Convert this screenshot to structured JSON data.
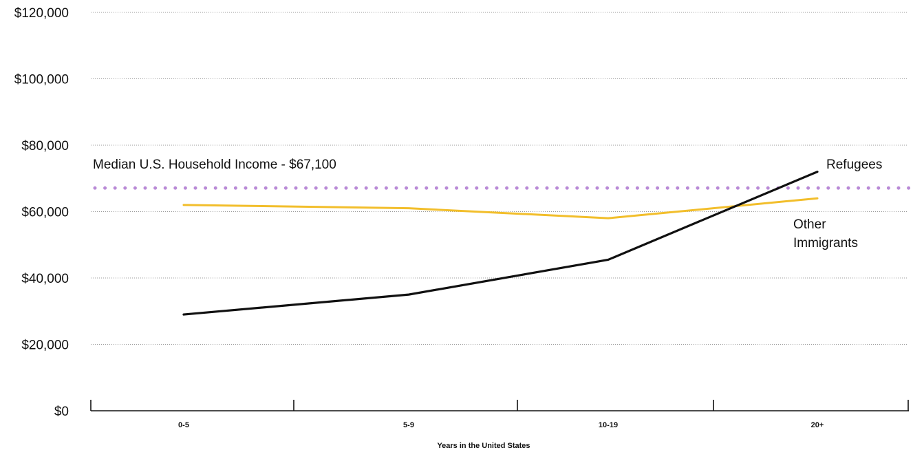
{
  "chart_data": {
    "type": "line",
    "xlabel": "Years in the United States",
    "ylabel": "",
    "categories": [
      "0-5",
      "5-9",
      "10-19",
      "20+"
    ],
    "ylim": [
      0,
      120000
    ],
    "yticks": [
      0,
      20000,
      40000,
      60000,
      80000,
      100000,
      120000
    ],
    "ytick_labels": [
      "$0",
      "$20,000",
      "$40,000",
      "$60,000",
      "$80,000",
      "$100,000",
      "$120,000"
    ],
    "grid": "horizontal dotted",
    "series": [
      {
        "name": "Refugees",
        "color": "#111111",
        "values": [
          29000,
          35000,
          45500,
          72000
        ]
      },
      {
        "name": "Other Immigrants",
        "color": "#F2BE2B",
        "values": [
          62000,
          61000,
          58000,
          64000
        ]
      }
    ],
    "reference_line": {
      "label": "Median U.S. Household Income - $67,100",
      "value": 67100,
      "color": "#B98AD6",
      "style": "dotted"
    },
    "series_labels": {
      "refugees": "Refugees",
      "other_immigrants_line1": "Other",
      "other_immigrants_line2": "Immigrants"
    }
  }
}
